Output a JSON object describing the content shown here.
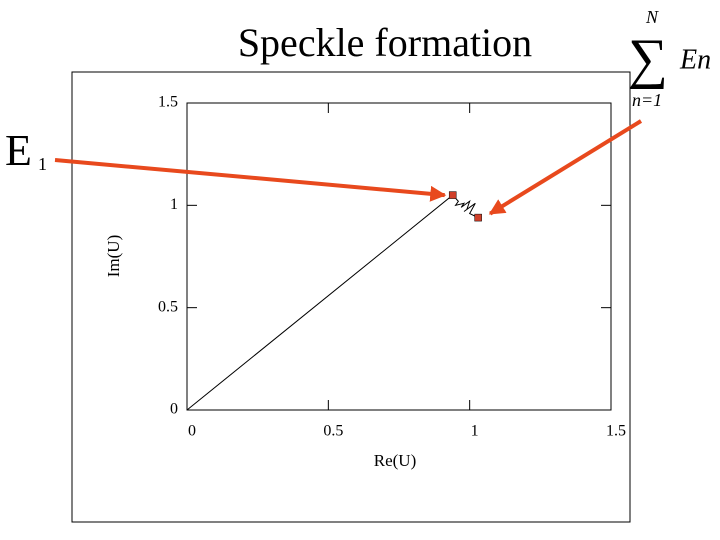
{
  "chart_data": {
    "type": "line",
    "title": "Speckle formation",
    "x_label": "Re(U)",
    "y_label": "Im(U)",
    "xlim": [
      0,
      1.5
    ],
    "xticks": [
      0,
      0.5,
      1,
      1.5
    ],
    "ylim": [
      0,
      1.5
    ],
    "yticks": [
      0,
      0.5,
      1,
      1.5
    ],
    "series": [
      {
        "color": "#000000",
        "line": true,
        "marker": "none",
        "x": [
          0,
          0.94,
          0.96,
          0.95,
          0.98,
          0.97,
          1.0,
          0.99,
          1.01,
          0.98,
          1.0,
          1.02,
          1.0,
          1.03
        ],
        "values": [
          0,
          1.05,
          1.02,
          1.0,
          1.01,
          0.99,
          1.02,
          0.98,
          1.0,
          0.97,
          0.99,
          1.01,
          0.96,
          0.94
        ]
      },
      {
        "color": "#d0402a",
        "line": false,
        "marker": "square",
        "x": [
          0.94,
          1.03
        ],
        "values": [
          1.05,
          0.94
        ]
      }
    ],
    "arrow_color": "#e8491d",
    "e1_label": {
      "main": "E",
      "subscript": "1"
    },
    "sum_label": {
      "symbol": "∑",
      "upper": "N",
      "lower": "n=1",
      "term": "En"
    }
  }
}
